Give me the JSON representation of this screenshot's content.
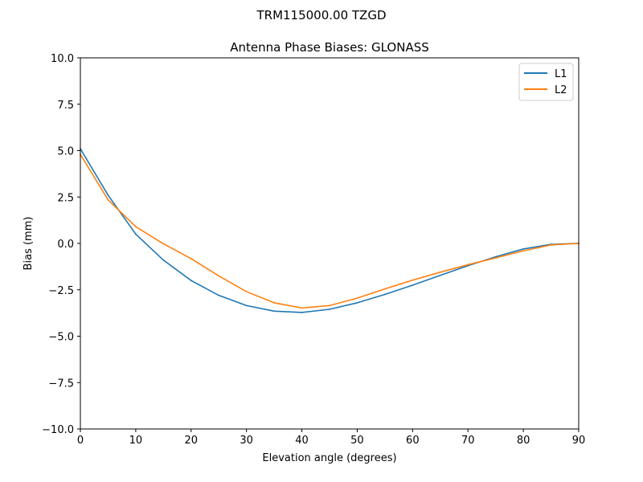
{
  "chart_data": {
    "type": "line",
    "suptitle": "TRM115000.00    TZGD",
    "title": "Antenna Phase Biases: GLONASS",
    "xlabel": "Elevation angle (degrees)",
    "ylabel": "Bias (mm)",
    "xlim": [
      0,
      90
    ],
    "ylim": [
      -10,
      10
    ],
    "xticks": [
      0,
      10,
      20,
      30,
      40,
      50,
      60,
      70,
      80,
      90
    ],
    "xtick_labels": [
      "0",
      "10",
      "20",
      "30",
      "40",
      "50",
      "60",
      "70",
      "80",
      "90"
    ],
    "yticks": [
      -10,
      -7.5,
      -5,
      -2.5,
      0,
      2.5,
      5,
      7.5,
      10
    ],
    "ytick_labels": [
      "−10.0",
      "−7.5",
      "−5.0",
      "−2.5",
      "0.0",
      "2.5",
      "5.0",
      "7.5",
      "10.0"
    ],
    "grid": false,
    "legend_position": "top-right",
    "x": [
      0,
      5,
      10,
      15,
      20,
      25,
      30,
      35,
      40,
      45,
      50,
      55,
      60,
      65,
      70,
      75,
      80,
      85,
      90
    ],
    "series": [
      {
        "name": "L1",
        "color": "#1f77b4",
        "values": [
          5.1,
          2.6,
          0.5,
          -0.9,
          -2.0,
          -2.8,
          -3.35,
          -3.65,
          -3.72,
          -3.55,
          -3.2,
          -2.75,
          -2.25,
          -1.72,
          -1.2,
          -0.72,
          -0.3,
          -0.05,
          0.0
        ]
      },
      {
        "name": "L2",
        "color": "#ff7f0e",
        "values": [
          4.8,
          2.35,
          0.9,
          -0.02,
          -0.82,
          -1.75,
          -2.6,
          -3.2,
          -3.48,
          -3.35,
          -2.95,
          -2.45,
          -1.98,
          -1.55,
          -1.15,
          -0.78,
          -0.4,
          -0.08,
          0.0
        ]
      }
    ]
  }
}
